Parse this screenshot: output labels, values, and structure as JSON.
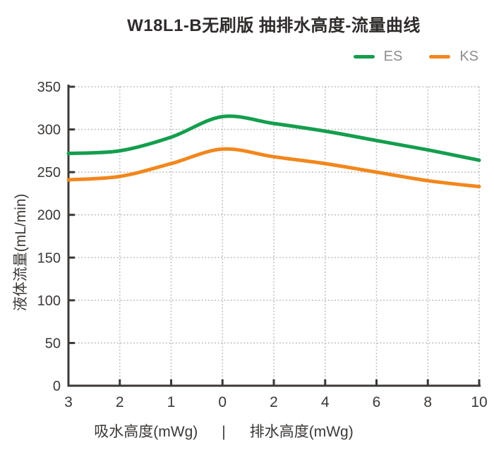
{
  "chart_data": {
    "type": "line",
    "title": "W18L1-B无刷版 抽排水高度-流量曲线",
    "categories": [
      "3",
      "2",
      "1",
      "0",
      "2",
      "4",
      "6",
      "8",
      "10"
    ],
    "series": [
      {
        "name": "ES",
        "color": "#149e4e",
        "values": [
          272,
          275,
          291,
          315,
          307,
          298,
          287,
          276,
          264
        ]
      },
      {
        "name": "KS",
        "color": "#f2871d",
        "values": [
          241,
          245,
          260,
          277,
          268,
          260,
          250,
          240,
          233
        ]
      }
    ],
    "ylabel": "液体流量(mL/min)",
    "xlabel_left": "吸水高度(mWg)",
    "xlabel_separator": "|",
    "xlabel_right": "排水高度(mWg)",
    "ylim": [
      0,
      350
    ],
    "ytick_step": 50,
    "yticks": [
      "0",
      "50",
      "100",
      "150",
      "200",
      "250",
      "300",
      "350"
    ],
    "grid": "dotted",
    "legend_position": "top-right",
    "colors": {
      "axis": "#3b3836",
      "grid": "#bdbdbd",
      "tick_label": "#3b3836",
      "title_text": "#2f2c2b",
      "legend_text": "#8e8e8e",
      "background": "#ffffff"
    }
  }
}
